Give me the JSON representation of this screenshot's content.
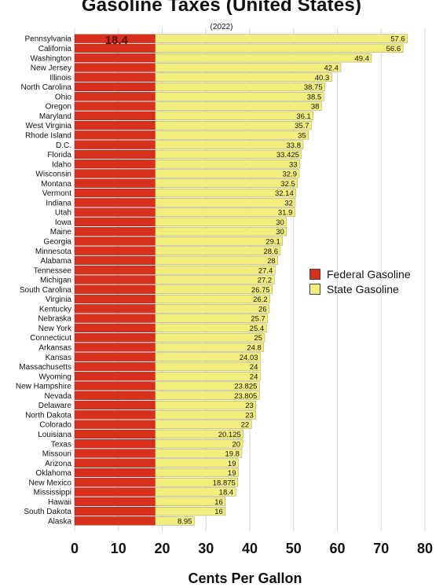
{
  "chart_data": {
    "type": "bar",
    "orientation": "horizontal",
    "stacked": true,
    "title": "Gasoline Taxes (United States)",
    "subtitle": "(2022)",
    "xlabel": "Cents Per Gallon",
    "ylabel": "",
    "xlim": [
      0,
      80
    ],
    "xticks": [
      0,
      10,
      20,
      30,
      40,
      50,
      60,
      70,
      80
    ],
    "grid": true,
    "legend_position": "right",
    "federal_label": "18.4",
    "categories": [
      "Pennsylvania",
      "California",
      "Washington",
      "New Jersey",
      "Illinois",
      "North Carolina",
      "Ohio",
      "Oregon",
      "Maryland",
      "West Virginia",
      "Rhode Island",
      "D.C.",
      "Florida",
      "Idaho",
      "Wisconsin",
      "Montana",
      "Vermont",
      "Indiana",
      "Utah",
      "Iowa",
      "Maine",
      "Georgia",
      "Minnesota",
      "Alabama",
      "Tennessee",
      "Michigan",
      "South Carolina",
      "Virginia",
      "Kentucky",
      "Nebraska",
      "New York",
      "Connecticut",
      "Arkansas",
      "Kansas",
      "Massachusetts",
      "Wyoming",
      "New Hampshire",
      "Nevada",
      "Delaware",
      "North Dakota",
      "Colorado",
      "Louisiana",
      "Texas",
      "Missouri",
      "Arizona",
      "Oklahoma",
      "New Mexico",
      "Mississippi",
      "Hawaii",
      "South Dakota",
      "Alaska"
    ],
    "series": [
      {
        "name": "Federal Gasoline",
        "color": "#d9301e",
        "values": [
          18.4,
          18.4,
          18.4,
          18.4,
          18.4,
          18.4,
          18.4,
          18.4,
          18.4,
          18.4,
          18.4,
          18.4,
          18.4,
          18.4,
          18.4,
          18.4,
          18.4,
          18.4,
          18.4,
          18.4,
          18.4,
          18.4,
          18.4,
          18.4,
          18.4,
          18.4,
          18.4,
          18.4,
          18.4,
          18.4,
          18.4,
          18.4,
          18.4,
          18.4,
          18.4,
          18.4,
          18.4,
          18.4,
          18.4,
          18.4,
          18.4,
          18.4,
          18.4,
          18.4,
          18.4,
          18.4,
          18.4,
          18.4,
          18.4,
          18.4,
          18.4
        ]
      },
      {
        "name": "State Gasoline",
        "color": "#f2ee7e",
        "values": [
          57.6,
          56.6,
          49.4,
          42.4,
          40.3,
          38.75,
          38.5,
          38,
          36.1,
          35.7,
          35,
          33.8,
          33.425,
          33,
          32.9,
          32.5,
          32.14,
          32,
          31.9,
          30,
          30,
          29.1,
          28.6,
          28,
          27.4,
          27.2,
          26.75,
          26.2,
          26,
          25.7,
          25.4,
          25,
          24.8,
          24.03,
          24,
          24,
          23.825,
          23.805,
          23,
          23,
          22,
          20.125,
          20,
          19.8,
          19,
          19,
          18.875,
          18.4,
          16,
          16,
          8.95
        ]
      }
    ]
  }
}
